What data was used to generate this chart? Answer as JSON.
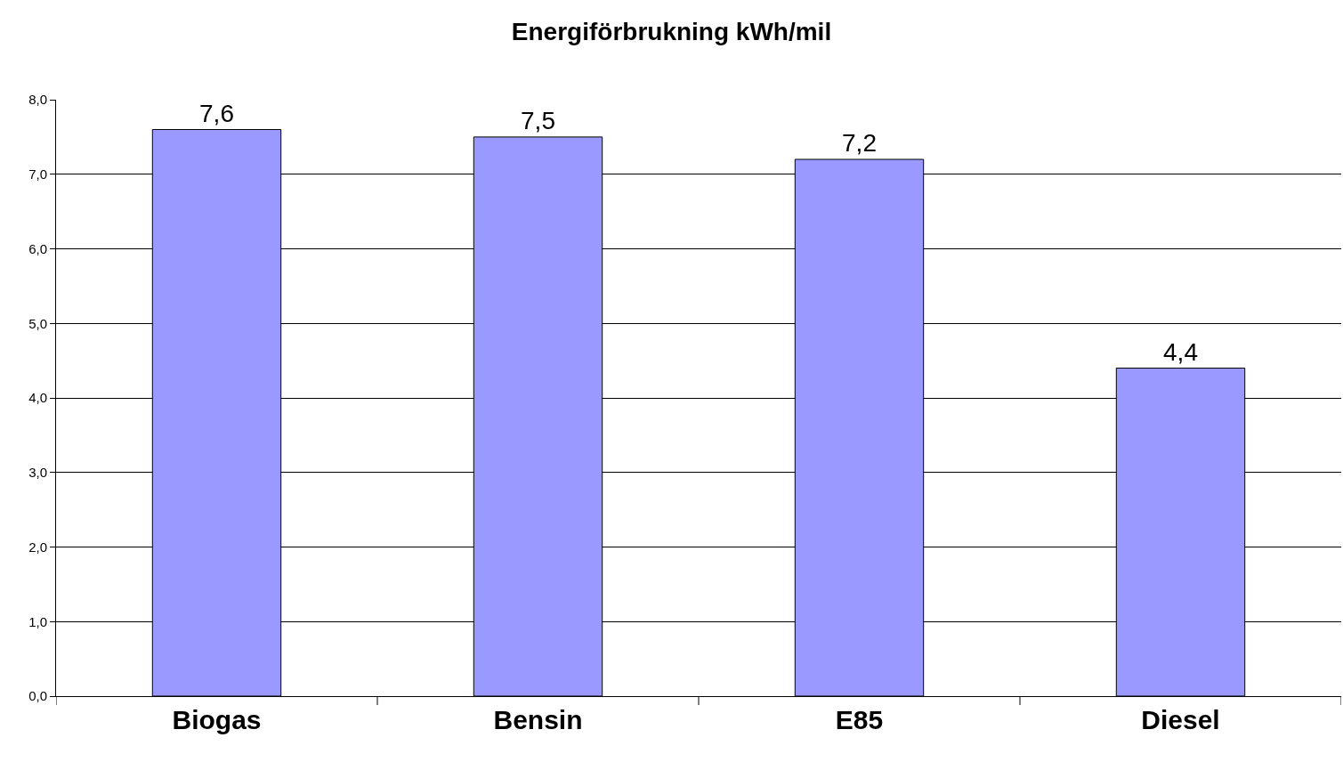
{
  "chart_data": {
    "type": "bar",
    "title": "Energiförbrukning kWh/mil",
    "categories": [
      "Biogas",
      "Bensin",
      "E85",
      "Diesel"
    ],
    "values": [
      7.6,
      7.5,
      7.2,
      4.4
    ],
    "value_labels": [
      "7,6",
      "7,5",
      "7,2",
      "4,4"
    ],
    "color": "#9999ff",
    "ylim": [
      0,
      8
    ],
    "yticks": [
      {
        "value": 0,
        "label": "0,0"
      },
      {
        "value": 1,
        "label": "1,0"
      },
      {
        "value": 2,
        "label": "2,0"
      },
      {
        "value": 3,
        "label": "3,0"
      },
      {
        "value": 4,
        "label": "4,0"
      },
      {
        "value": 5,
        "label": "5,0"
      },
      {
        "value": 6,
        "label": "6,0"
      },
      {
        "value": 7,
        "label": "7,0"
      },
      {
        "value": 8,
        "label": "8,0"
      }
    ],
    "grid": "y",
    "legend": false
  }
}
